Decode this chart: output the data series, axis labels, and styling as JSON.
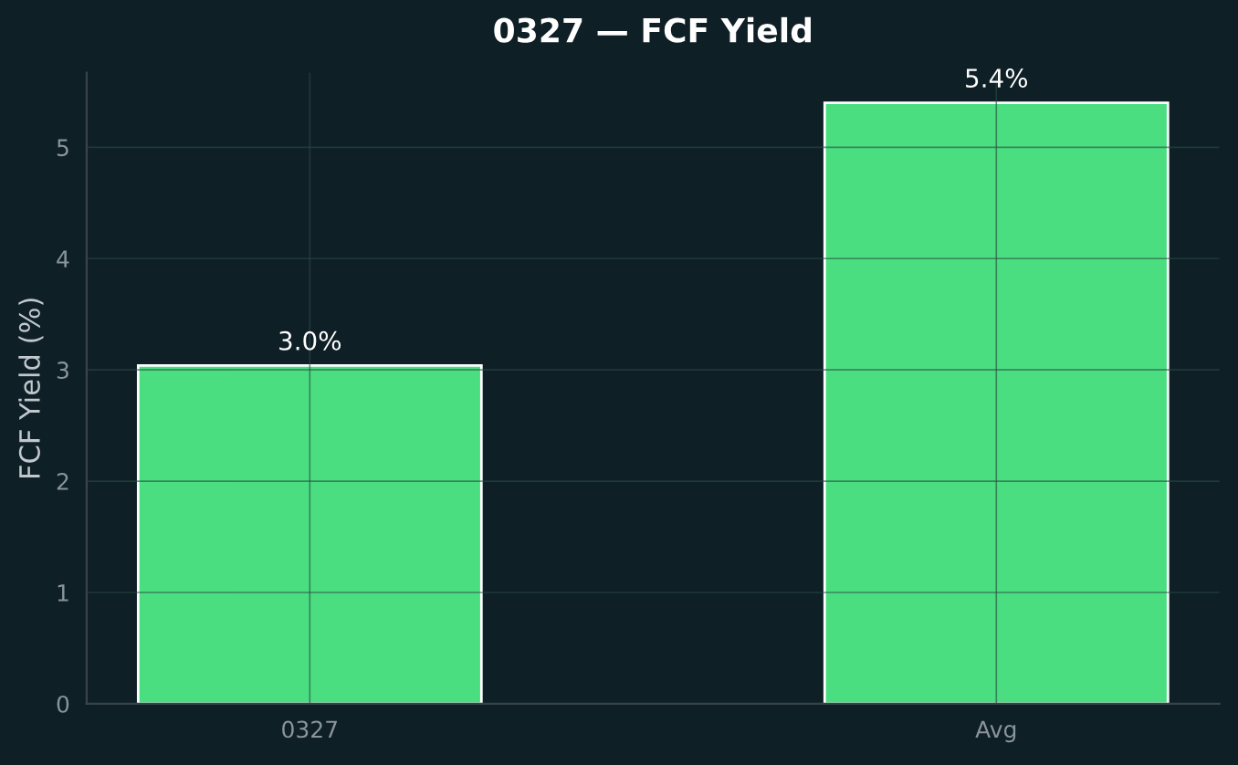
{
  "chart_data": {
    "type": "bar",
    "title": "0327 — FCF Yield",
    "ylabel": "FCF Yield (%)",
    "categories": [
      "0327",
      "Avg"
    ],
    "values": [
      3.04,
      5.4
    ],
    "value_labels": [
      "3.0%",
      "5.4%"
    ],
    "color": "#4ade80",
    "ylim": [
      0,
      5.67
    ],
    "yticks": [
      0,
      1,
      2,
      3,
      4,
      5
    ],
    "grid": true,
    "legend": false
  }
}
